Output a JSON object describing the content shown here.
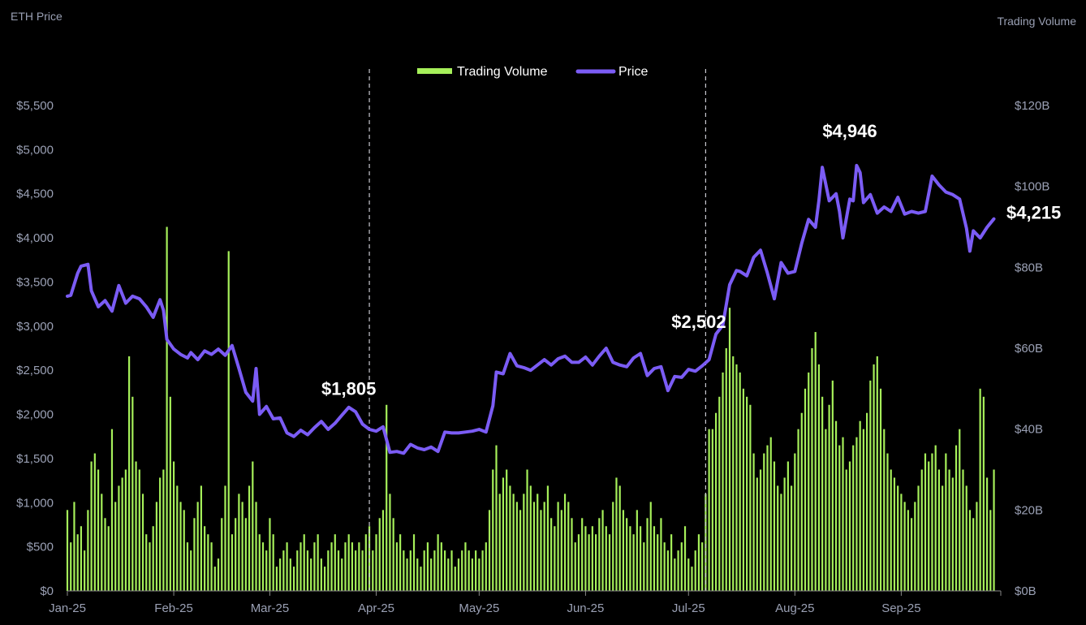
{
  "chart_data": {
    "type": "bar+line",
    "left_axis_title": "ETH Price",
    "right_axis_title": "Trading Volume",
    "legend": [
      {
        "name": "Trading Volume",
        "color": "#a6f05a"
      },
      {
        "name": "Price",
        "color": "#7b5cf5"
      }
    ],
    "left_ticks": [
      "$0",
      "$500",
      "$1,000",
      "$1,500",
      "$2,000",
      "$2,500",
      "$3,000",
      "$3,500",
      "$4,000",
      "$4,500",
      "$5,000",
      "$5,500"
    ],
    "left_range": [
      0,
      5500
    ],
    "right_ticks": [
      "$0B",
      "$20B",
      "$40B",
      "$60B",
      "$80B",
      "$100B",
      "$120B"
    ],
    "right_range": [
      0,
      120
    ],
    "x_ticks": [
      "Jan-25",
      "Feb-25",
      "Mar-25",
      "Apr-25",
      "May-25",
      "Jun-25",
      "Jul-25",
      "Aug-25",
      "Sep-25"
    ],
    "x_tick_days": [
      0,
      31,
      59,
      90,
      120,
      151,
      181,
      212,
      243
    ],
    "x_range_days": [
      0,
      272
    ],
    "reference_lines_days": [
      88,
      186
    ],
    "annotations": [
      {
        "label": "$1,805",
        "day": 82,
        "value": 2220
      },
      {
        "label": "$2,502",
        "day": 184,
        "value": 2980
      },
      {
        "label": "$4,946",
        "day": 228,
        "value": 5140
      },
      {
        "label": "$4,215",
        "day": 273,
        "value": 4215
      }
    ],
    "price_keypoints": [
      [
        0,
        3340
      ],
      [
        1,
        3350
      ],
      [
        3,
        3600
      ],
      [
        4,
        3680
      ],
      [
        6,
        3700
      ],
      [
        7,
        3400
      ],
      [
        9,
        3220
      ],
      [
        11,
        3290
      ],
      [
        13,
        3170
      ],
      [
        15,
        3460
      ],
      [
        17,
        3260
      ],
      [
        19,
        3340
      ],
      [
        21,
        3310
      ],
      [
        23,
        3220
      ],
      [
        25,
        3100
      ],
      [
        27,
        3300
      ],
      [
        28,
        3180
      ],
      [
        29,
        2850
      ],
      [
        31,
        2740
      ],
      [
        33,
        2680
      ],
      [
        35,
        2640
      ],
      [
        36,
        2700
      ],
      [
        38,
        2620
      ],
      [
        40,
        2720
      ],
      [
        42,
        2680
      ],
      [
        44,
        2740
      ],
      [
        46,
        2670
      ],
      [
        48,
        2780
      ],
      [
        50,
        2520
      ],
      [
        52,
        2250
      ],
      [
        54,
        2150
      ],
      [
        55,
        2520
      ],
      [
        56,
        2000
      ],
      [
        58,
        2090
      ],
      [
        60,
        1950
      ],
      [
        62,
        1960
      ],
      [
        64,
        1790
      ],
      [
        66,
        1750
      ],
      [
        68,
        1820
      ],
      [
        70,
        1770
      ],
      [
        72,
        1850
      ],
      [
        74,
        1920
      ],
      [
        76,
        1830
      ],
      [
        78,
        1900
      ],
      [
        80,
        1990
      ],
      [
        82,
        2080
      ],
      [
        84,
        2030
      ],
      [
        86,
        1890
      ],
      [
        88,
        1830
      ],
      [
        90,
        1810
      ],
      [
        92,
        1860
      ],
      [
        94,
        1570
      ],
      [
        96,
        1580
      ],
      [
        98,
        1560
      ],
      [
        100,
        1660
      ],
      [
        102,
        1620
      ],
      [
        104,
        1600
      ],
      [
        106,
        1630
      ],
      [
        108,
        1580
      ],
      [
        110,
        1800
      ],
      [
        112,
        1790
      ],
      [
        114,
        1790
      ],
      [
        116,
        1800
      ],
      [
        118,
        1810
      ],
      [
        120,
        1830
      ],
      [
        122,
        1800
      ],
      [
        124,
        2100
      ],
      [
        125,
        2480
      ],
      [
        127,
        2460
      ],
      [
        129,
        2690
      ],
      [
        131,
        2550
      ],
      [
        133,
        2530
      ],
      [
        135,
        2500
      ],
      [
        137,
        2560
      ],
      [
        139,
        2620
      ],
      [
        141,
        2560
      ],
      [
        143,
        2630
      ],
      [
        145,
        2660
      ],
      [
        147,
        2590
      ],
      [
        149,
        2590
      ],
      [
        151,
        2650
      ],
      [
        153,
        2560
      ],
      [
        155,
        2660
      ],
      [
        157,
        2750
      ],
      [
        159,
        2590
      ],
      [
        161,
        2560
      ],
      [
        163,
        2540
      ],
      [
        165,
        2640
      ],
      [
        167,
        2690
      ],
      [
        169,
        2440
      ],
      [
        171,
        2520
      ],
      [
        173,
        2540
      ],
      [
        175,
        2270
      ],
      [
        177,
        2430
      ],
      [
        179,
        2420
      ],
      [
        181,
        2510
      ],
      [
        183,
        2490
      ],
      [
        185,
        2550
      ],
      [
        187,
        2620
      ],
      [
        189,
        2910
      ],
      [
        191,
        3010
      ],
      [
        193,
        3470
      ],
      [
        195,
        3630
      ],
      [
        196,
        3620
      ],
      [
        198,
        3570
      ],
      [
        200,
        3780
      ],
      [
        202,
        3860
      ],
      [
        204,
        3600
      ],
      [
        206,
        3310
      ],
      [
        208,
        3720
      ],
      [
        210,
        3600
      ],
      [
        212,
        3620
      ],
      [
        214,
        3940
      ],
      [
        216,
        4210
      ],
      [
        218,
        4120
      ],
      [
        219,
        4420
      ],
      [
        220,
        4800
      ],
      [
        222,
        4420
      ],
      [
        224,
        4500
      ],
      [
        225,
        4300
      ],
      [
        226,
        4000
      ],
      [
        228,
        4440
      ],
      [
        229,
        4420
      ],
      [
        230,
        4820
      ],
      [
        231,
        4740
      ],
      [
        232,
        4400
      ],
      [
        234,
        4490
      ],
      [
        236,
        4280
      ],
      [
        238,
        4350
      ],
      [
        240,
        4300
      ],
      [
        242,
        4460
      ],
      [
        244,
        4270
      ],
      [
        246,
        4300
      ],
      [
        248,
        4280
      ],
      [
        250,
        4300
      ],
      [
        252,
        4700
      ],
      [
        254,
        4600
      ],
      [
        256,
        4520
      ],
      [
        258,
        4490
      ],
      [
        260,
        4440
      ],
      [
        262,
        4110
      ],
      [
        263,
        3850
      ],
      [
        264,
        4080
      ],
      [
        266,
        4000
      ],
      [
        268,
        4120
      ],
      [
        270,
        4215
      ]
    ],
    "volume_keypoints": [
      [
        0,
        20
      ],
      [
        1,
        12
      ],
      [
        2,
        22
      ],
      [
        3,
        14
      ],
      [
        4,
        16
      ],
      [
        5,
        10
      ],
      [
        6,
        20
      ],
      [
        7,
        32
      ],
      [
        8,
        34
      ],
      [
        9,
        30
      ],
      [
        10,
        24
      ],
      [
        11,
        18
      ],
      [
        12,
        16
      ],
      [
        13,
        40
      ],
      [
        14,
        22
      ],
      [
        15,
        26
      ],
      [
        16,
        28
      ],
      [
        17,
        30
      ],
      [
        18,
        58
      ],
      [
        19,
        48
      ],
      [
        20,
        32
      ],
      [
        21,
        30
      ],
      [
        22,
        24
      ],
      [
        23,
        14
      ],
      [
        24,
        12
      ],
      [
        25,
        16
      ],
      [
        26,
        22
      ],
      [
        27,
        28
      ],
      [
        28,
        30
      ],
      [
        29,
        90
      ],
      [
        30,
        48
      ],
      [
        31,
        32
      ],
      [
        32,
        26
      ],
      [
        33,
        22
      ],
      [
        34,
        20
      ],
      [
        35,
        12
      ],
      [
        36,
        10
      ],
      [
        37,
        18
      ],
      [
        38,
        22
      ],
      [
        39,
        26
      ],
      [
        40,
        16
      ],
      [
        41,
        14
      ],
      [
        42,
        12
      ],
      [
        43,
        6
      ],
      [
        44,
        8
      ],
      [
        45,
        18
      ],
      [
        46,
        26
      ],
      [
        47,
        84
      ],
      [
        48,
        14
      ],
      [
        49,
        18
      ],
      [
        50,
        24
      ],
      [
        51,
        22
      ],
      [
        52,
        18
      ],
      [
        53,
        26
      ],
      [
        54,
        32
      ],
      [
        55,
        22
      ],
      [
        56,
        14
      ],
      [
        57,
        12
      ],
      [
        58,
        10
      ],
      [
        59,
        18
      ],
      [
        60,
        14
      ],
      [
        61,
        6
      ],
      [
        62,
        8
      ],
      [
        63,
        10
      ],
      [
        64,
        12
      ],
      [
        65,
        8
      ],
      [
        66,
        6
      ],
      [
        67,
        10
      ],
      [
        68,
        12
      ],
      [
        69,
        14
      ],
      [
        70,
        10
      ],
      [
        71,
        8
      ],
      [
        72,
        12
      ],
      [
        73,
        14
      ],
      [
        74,
        8
      ],
      [
        75,
        6
      ],
      [
        76,
        10
      ],
      [
        77,
        12
      ],
      [
        78,
        14
      ],
      [
        79,
        10
      ],
      [
        80,
        8
      ],
      [
        81,
        12
      ],
      [
        82,
        14
      ],
      [
        83,
        12
      ],
      [
        84,
        10
      ],
      [
        85,
        12
      ],
      [
        86,
        10
      ],
      [
        87,
        14
      ],
      [
        88,
        16
      ],
      [
        89,
        10
      ],
      [
        90,
        14
      ],
      [
        91,
        18
      ],
      [
        92,
        20
      ],
      [
        93,
        46
      ],
      [
        94,
        24
      ],
      [
        95,
        18
      ],
      [
        96,
        12
      ],
      [
        97,
        14
      ],
      [
        98,
        10
      ],
      [
        99,
        8
      ],
      [
        100,
        10
      ],
      [
        101,
        14
      ],
      [
        102,
        8
      ],
      [
        103,
        6
      ],
      [
        104,
        10
      ],
      [
        105,
        12
      ],
      [
        106,
        8
      ],
      [
        107,
        10
      ],
      [
        108,
        14
      ],
      [
        109,
        12
      ],
      [
        110,
        10
      ],
      [
        111,
        8
      ],
      [
        112,
        10
      ],
      [
        113,
        6
      ],
      [
        114,
        8
      ],
      [
        115,
        10
      ],
      [
        116,
        12
      ],
      [
        117,
        10
      ],
      [
        118,
        8
      ],
      [
        119,
        10
      ],
      [
        120,
        8
      ],
      [
        121,
        10
      ],
      [
        122,
        12
      ],
      [
        123,
        20
      ],
      [
        124,
        30
      ],
      [
        125,
        36
      ],
      [
        126,
        24
      ],
      [
        127,
        28
      ],
      [
        128,
        30
      ],
      [
        129,
        26
      ],
      [
        130,
        24
      ],
      [
        131,
        22
      ],
      [
        132,
        20
      ],
      [
        133,
        24
      ],
      [
        134,
        30
      ],
      [
        135,
        26
      ],
      [
        136,
        22
      ],
      [
        137,
        24
      ],
      [
        138,
        20
      ],
      [
        139,
        22
      ],
      [
        140,
        26
      ],
      [
        141,
        18
      ],
      [
        142,
        16
      ],
      [
        143,
        22
      ],
      [
        144,
        20
      ],
      [
        145,
        24
      ],
      [
        146,
        22
      ],
      [
        147,
        18
      ],
      [
        148,
        12
      ],
      [
        149,
        14
      ],
      [
        150,
        18
      ],
      [
        151,
        16
      ],
      [
        152,
        14
      ],
      [
        153,
        16
      ],
      [
        154,
        14
      ],
      [
        155,
        18
      ],
      [
        156,
        20
      ],
      [
        157,
        16
      ],
      [
        158,
        14
      ],
      [
        159,
        22
      ],
      [
        160,
        28
      ],
      [
        161,
        26
      ],
      [
        162,
        20
      ],
      [
        163,
        18
      ],
      [
        164,
        16
      ],
      [
        165,
        14
      ],
      [
        166,
        20
      ],
      [
        167,
        16
      ],
      [
        168,
        12
      ],
      [
        169,
        18
      ],
      [
        170,
        22
      ],
      [
        171,
        16
      ],
      [
        172,
        14
      ],
      [
        173,
        18
      ],
      [
        174,
        12
      ],
      [
        175,
        10
      ],
      [
        176,
        14
      ],
      [
        177,
        8
      ],
      [
        178,
        10
      ],
      [
        179,
        12
      ],
      [
        180,
        16
      ],
      [
        181,
        8
      ],
      [
        182,
        6
      ],
      [
        183,
        10
      ],
      [
        184,
        14
      ],
      [
        185,
        12
      ],
      [
        186,
        24
      ],
      [
        187,
        40
      ],
      [
        188,
        40
      ],
      [
        189,
        44
      ],
      [
        190,
        48
      ],
      [
        191,
        54
      ],
      [
        192,
        60
      ],
      [
        193,
        70
      ],
      [
        194,
        58
      ],
      [
        195,
        56
      ],
      [
        196,
        54
      ],
      [
        197,
        50
      ],
      [
        198,
        48
      ],
      [
        199,
        46
      ],
      [
        200,
        34
      ],
      [
        201,
        28
      ],
      [
        202,
        30
      ],
      [
        203,
        34
      ],
      [
        204,
        36
      ],
      [
        205,
        38
      ],
      [
        206,
        32
      ],
      [
        207,
        26
      ],
      [
        208,
        24
      ],
      [
        209,
        28
      ],
      [
        210,
        32
      ],
      [
        211,
        26
      ],
      [
        212,
        34
      ],
      [
        213,
        40
      ],
      [
        214,
        44
      ],
      [
        215,
        50
      ],
      [
        216,
        54
      ],
      [
        217,
        60
      ],
      [
        218,
        64
      ],
      [
        219,
        56
      ],
      [
        220,
        48
      ],
      [
        221,
        40
      ],
      [
        222,
        46
      ],
      [
        223,
        52
      ],
      [
        224,
        42
      ],
      [
        225,
        36
      ],
      [
        226,
        38
      ],
      [
        227,
        30
      ],
      [
        228,
        32
      ],
      [
        229,
        36
      ],
      [
        230,
        38
      ],
      [
        231,
        42
      ],
      [
        232,
        40
      ],
      [
        233,
        44
      ],
      [
        234,
        52
      ],
      [
        235,
        56
      ],
      [
        236,
        58
      ],
      [
        237,
        50
      ],
      [
        238,
        40
      ],
      [
        239,
        34
      ],
      [
        240,
        30
      ],
      [
        241,
        28
      ],
      [
        242,
        26
      ],
      [
        243,
        24
      ],
      [
        244,
        22
      ],
      [
        245,
        20
      ],
      [
        246,
        18
      ],
      [
        247,
        22
      ],
      [
        248,
        26
      ],
      [
        249,
        30
      ],
      [
        250,
        34
      ],
      [
        251,
        32
      ],
      [
        252,
        34
      ],
      [
        253,
        36
      ],
      [
        254,
        30
      ],
      [
        255,
        26
      ],
      [
        256,
        34
      ],
      [
        257,
        30
      ],
      [
        258,
        28
      ],
      [
        259,
        36
      ],
      [
        260,
        40
      ],
      [
        261,
        30
      ],
      [
        262,
        26
      ],
      [
        263,
        20
      ],
      [
        264,
        18
      ],
      [
        265,
        22
      ],
      [
        266,
        50
      ],
      [
        267,
        48
      ],
      [
        268,
        28
      ],
      [
        269,
        20
      ],
      [
        270,
        30
      ]
    ]
  }
}
